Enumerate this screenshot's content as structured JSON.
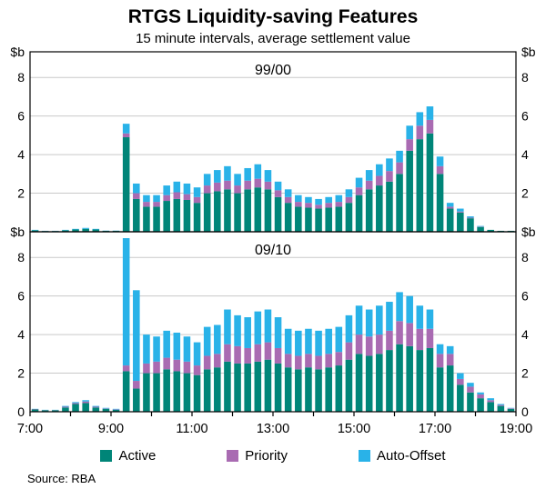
{
  "title": "RTGS Liquidity-saving Features",
  "subtitle": "15 minute intervals, average settlement value",
  "source": "Source: RBA",
  "y_zero_label": "0",
  "colors": {
    "active": "#008578",
    "priority": "#a96bb2",
    "auto_offset": "#29b2e8",
    "grid": "#c9c9c9",
    "axis": "#000000"
  },
  "legend": [
    {
      "label": "Active",
      "color": "#008578"
    },
    {
      "label": "Priority",
      "color": "#a96bb2"
    },
    {
      "label": "Auto-Offset",
      "color": "#29b2e8"
    }
  ],
  "x_tick_labels": [
    "7:00",
    "9:00",
    "11:00",
    "13:00",
    "15:00",
    "17:00",
    "19:00"
  ],
  "chart_data": {
    "type": "bar",
    "stacked": true,
    "title": "RTGS Liquidity-saving Features",
    "subtitle": "15 minute intervals, average settlement value",
    "ylabel": "$b",
    "ylim": [
      0,
      9.33
    ],
    "gridlines": [
      2,
      4,
      6,
      8
    ],
    "legend_position": "bottom",
    "categories": [
      "7:00",
      "7:15",
      "7:30",
      "7:45",
      "8:00",
      "8:15",
      "8:30",
      "8:45",
      "9:00",
      "9:15",
      "9:30",
      "9:45",
      "10:00",
      "10:15",
      "10:30",
      "10:45",
      "11:00",
      "11:15",
      "11:30",
      "11:45",
      "12:00",
      "12:15",
      "12:30",
      "12:45",
      "13:00",
      "13:15",
      "13:30",
      "13:45",
      "14:00",
      "14:15",
      "14:30",
      "14:45",
      "15:00",
      "15:15",
      "15:30",
      "15:45",
      "16:00",
      "16:15",
      "16:30",
      "16:45",
      "17:00",
      "17:15",
      "17:30",
      "17:45",
      "18:00",
      "18:15",
      "18:30",
      "18:45"
    ],
    "panels": [
      {
        "label": "99/00",
        "series": [
          {
            "name": "Active",
            "values": [
              0.08,
              0.04,
              0.04,
              0.08,
              0.12,
              0.15,
              0.12,
              0.05,
              0.05,
              4.9,
              1.7,
              1.3,
              1.3,
              1.6,
              1.7,
              1.65,
              1.5,
              2.0,
              2.1,
              2.2,
              2.0,
              2.2,
              2.3,
              2.2,
              1.8,
              1.5,
              1.3,
              1.25,
              1.2,
              1.25,
              1.3,
              1.5,
              1.9,
              2.2,
              2.4,
              2.6,
              3.0,
              4.2,
              4.8,
              5.1,
              3.0,
              1.2,
              1.0,
              0.7,
              0.25,
              0.1,
              0.05,
              0.05
            ]
          },
          {
            "name": "Priority",
            "values": [
              0,
              0,
              0,
              0,
              0,
              0,
              0,
              0,
              0,
              0.2,
              0.3,
              0.25,
              0.25,
              0.3,
              0.35,
              0.3,
              0.3,
              0.4,
              0.45,
              0.45,
              0.4,
              0.45,
              0.45,
              0.4,
              0.35,
              0.3,
              0.25,
              0.25,
              0.2,
              0.25,
              0.25,
              0.3,
              0.4,
              0.45,
              0.5,
              0.55,
              0.6,
              0.6,
              0.7,
              0.7,
              0.4,
              0.1,
              0.05,
              0.03,
              0.02,
              0,
              0,
              0
            ]
          },
          {
            "name": "Auto-Offset",
            "values": [
              0.02,
              0.01,
              0.01,
              0.02,
              0.03,
              0.05,
              0.03,
              0.01,
              0.01,
              0.5,
              0.5,
              0.35,
              0.35,
              0.5,
              0.55,
              0.55,
              0.5,
              0.6,
              0.65,
              0.75,
              0.6,
              0.65,
              0.75,
              0.6,
              0.45,
              0.4,
              0.35,
              0.3,
              0.3,
              0.3,
              0.35,
              0.4,
              0.5,
              0.55,
              0.6,
              0.65,
              0.6,
              0.7,
              0.7,
              0.7,
              0.5,
              0.2,
              0.15,
              0.07,
              0.03,
              0,
              0,
              0
            ]
          }
        ]
      },
      {
        "label": "09/10",
        "series": [
          {
            "name": "Active",
            "values": [
              0.12,
              0.08,
              0.08,
              0.22,
              0.4,
              0.45,
              0.22,
              0.15,
              0.1,
              2.1,
              1.2,
              2.0,
              2.0,
              2.2,
              2.1,
              2.0,
              1.9,
              2.2,
              2.3,
              2.6,
              2.5,
              2.5,
              2.6,
              2.7,
              2.5,
              2.3,
              2.2,
              2.3,
              2.2,
              2.3,
              2.4,
              2.7,
              3.0,
              2.9,
              3.0,
              3.2,
              3.5,
              3.4,
              3.2,
              3.3,
              2.3,
              2.4,
              1.4,
              1.0,
              0.7,
              0.5,
              0.3,
              0.15
            ]
          },
          {
            "name": "Priority",
            "values": [
              0.02,
              0.01,
              0.01,
              0.04,
              0.05,
              0.08,
              0.04,
              0.02,
              0.02,
              0.3,
              0.4,
              0.5,
              0.6,
              0.6,
              0.6,
              0.6,
              0.5,
              0.7,
              0.7,
              0.9,
              0.9,
              0.8,
              0.9,
              0.9,
              0.8,
              0.7,
              0.7,
              0.7,
              0.7,
              0.7,
              0.7,
              0.9,
              1.0,
              1.0,
              1.0,
              1.0,
              1.2,
              1.2,
              1.1,
              1.0,
              0.7,
              0.6,
              0.3,
              0.3,
              0.2,
              0.1,
              0.05,
              0.03
            ]
          },
          {
            "name": "Auto-Offset",
            "values": [
              0.01,
              0.01,
              0.01,
              0.04,
              0.05,
              0.07,
              0.04,
              0.03,
              0.03,
              6.6,
              4.7,
              1.5,
              1.3,
              1.4,
              1.4,
              1.3,
              1.2,
              1.5,
              1.5,
              1.8,
              1.6,
              1.6,
              1.7,
              1.7,
              1.6,
              1.3,
              1.3,
              1.3,
              1.3,
              1.3,
              1.3,
              1.4,
              1.5,
              1.4,
              1.5,
              1.5,
              1.5,
              1.4,
              1.2,
              1.0,
              0.5,
              0.4,
              0.3,
              0.2,
              0.1,
              0.1,
              0.05,
              0.02
            ]
          }
        ]
      }
    ]
  }
}
